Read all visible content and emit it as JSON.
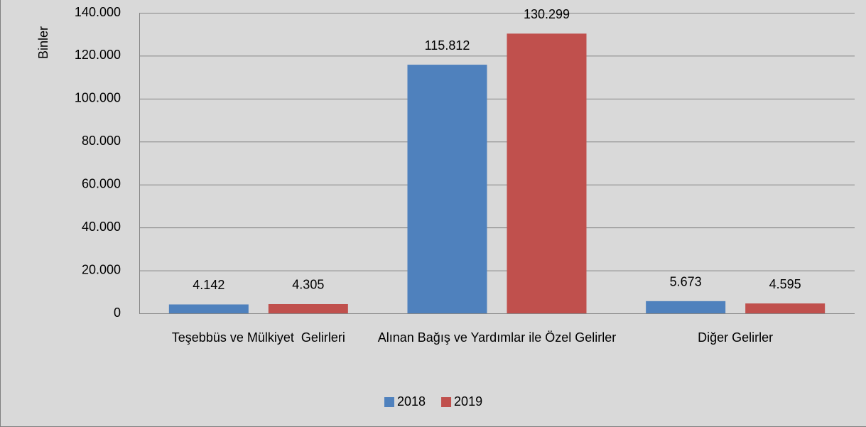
{
  "chart_data": {
    "type": "bar",
    "y_label": "Binler",
    "categories": [
      "Teşebbüs ve Mülkiyet  Gelirleri",
      "Alınan Bağış ve Yardımlar ile Özel Gelirler",
      "Diğer Gelirler"
    ],
    "series": [
      {
        "name": "2018",
        "color": "#4f81bd",
        "values": [
          4142,
          115812,
          5673
        ],
        "value_labels": [
          "4.142",
          "115.812",
          "5.673"
        ]
      },
      {
        "name": "2019",
        "color": "#c0504d",
        "values": [
          4305,
          130299,
          4595
        ],
        "value_labels": [
          "4.305",
          "130.299",
          "4.595"
        ]
      }
    ],
    "ylim": [
      0,
      140000
    ],
    "yticks": [
      0,
      {
        "value": 20000,
        "label": "20.000"
      },
      {
        "value": 40000,
        "label": "40.000"
      },
      {
        "value": 60000,
        "label": "60.000"
      },
      {
        "value": 80000,
        "label": "80.000"
      },
      {
        "value": 100000,
        "label": "100.000"
      },
      {
        "value": 120000,
        "label": "120.000"
      },
      {
        "value": 140000,
        "label": "140.000"
      }
    ],
    "grid": true,
    "legend": "bottom"
  }
}
